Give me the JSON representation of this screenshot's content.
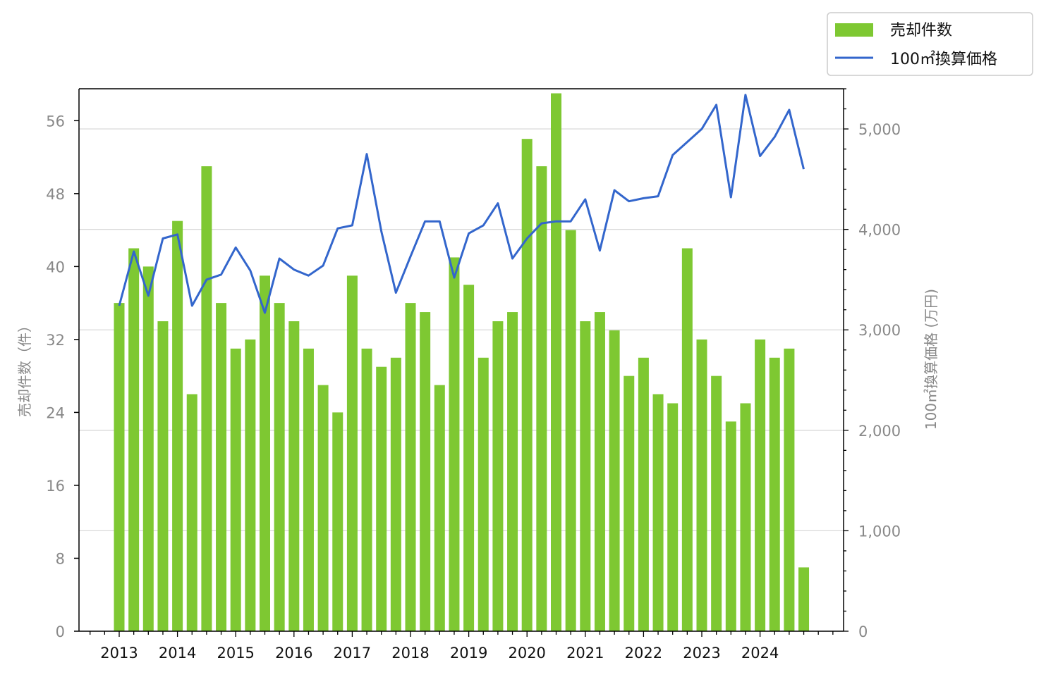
{
  "chart_data": {
    "type": "bar+line",
    "title": "",
    "ylabel_left": "売却件数（件）",
    "ylabel_right": "100㎡換算価格 (万円)",
    "x_tick_labels": [
      "2013",
      "2014",
      "2015",
      "2016",
      "2017",
      "2018",
      "2019",
      "2020",
      "2021",
      "2022",
      "2023",
      "2024"
    ],
    "ylim_left": [
      0,
      59.5
    ],
    "yticks_left": [
      0,
      8,
      16,
      24,
      32,
      40,
      48,
      56
    ],
    "ylim_right": [
      0,
      5400
    ],
    "yticks_right": [
      "0",
      "1,000",
      "2,000",
      "3,000",
      "4,000",
      "5,000"
    ],
    "yticks_right_values": [
      0,
      1000,
      2000,
      3000,
      4000,
      5000
    ],
    "grid": "horizontal",
    "legend_position": "top-right, outside",
    "colors": {
      "bar": "#7ec832",
      "line": "#3366cc",
      "grid": "#d9d9d9"
    },
    "periods": [
      "2013Q1",
      "2013Q2",
      "2013Q3",
      "2013Q4",
      "2014Q1",
      "2014Q2",
      "2014Q3",
      "2014Q4",
      "2015Q1",
      "2015Q2",
      "2015Q3",
      "2015Q4",
      "2016Q1",
      "2016Q2",
      "2016Q3",
      "2016Q4",
      "2017Q1",
      "2017Q2",
      "2017Q3",
      "2017Q4",
      "2018Q1",
      "2018Q2",
      "2018Q3",
      "2018Q4",
      "2019Q1",
      "2019Q2",
      "2019Q3",
      "2019Q4",
      "2020Q1",
      "2020Q2",
      "2020Q3",
      "2020Q4",
      "2021Q1",
      "2021Q2",
      "2021Q3",
      "2021Q4",
      "2022Q1",
      "2022Q2",
      "2022Q3",
      "2022Q4",
      "2023Q1",
      "2023Q2",
      "2023Q3",
      "2023Q4",
      "2024Q1",
      "2024Q2",
      "2024Q3",
      "2024Q4"
    ],
    "series": [
      {
        "name": "売却件数",
        "type": "bar",
        "axis": "left",
        "values": [
          36,
          42,
          40,
          34,
          45,
          26,
          51,
          36,
          31,
          32,
          39,
          36,
          34,
          31,
          27,
          24,
          39,
          31,
          29,
          30,
          36,
          35,
          27,
          41,
          38,
          30,
          34,
          35,
          54,
          51,
          59,
          44,
          34,
          35,
          33,
          28,
          30,
          26,
          25,
          42,
          32,
          28,
          23,
          25,
          32,
          30,
          31,
          7
        ]
      },
      {
        "name": "100㎡換算価格",
        "type": "line",
        "axis": "right",
        "values": [
          3240,
          3780,
          3340,
          3910,
          3950,
          3240,
          3500,
          3550,
          3820,
          3590,
          3170,
          3710,
          3600,
          3540,
          3640,
          4010,
          4040,
          4750,
          3980,
          3370,
          3730,
          4080,
          4080,
          3520,
          3960,
          4040,
          4260,
          3710,
          3910,
          4060,
          4080,
          4080,
          4300,
          3790,
          4390,
          4280,
          4310,
          4330,
          4740,
          4870,
          5000,
          5240,
          4320,
          5340,
          4730,
          4920,
          5190,
          4600
        ]
      }
    ]
  }
}
